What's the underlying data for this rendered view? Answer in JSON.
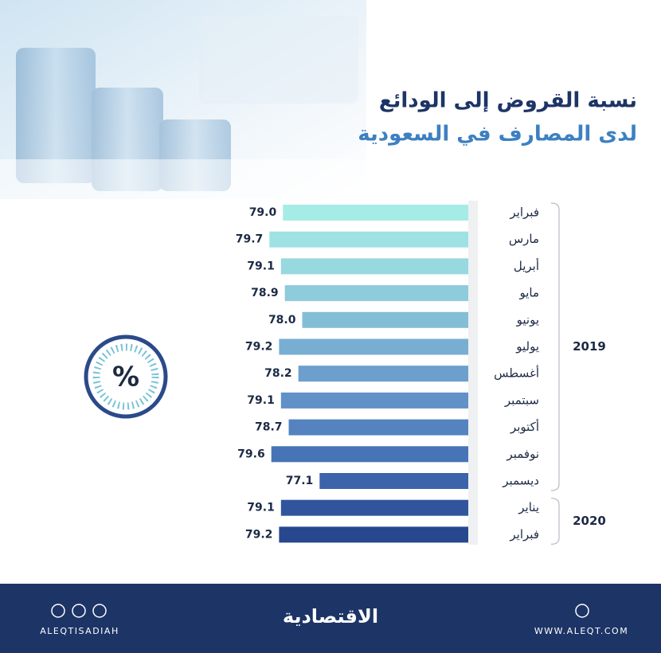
{
  "chart_data": {
    "type": "hbar",
    "title": "نسبة القروض إلى الودائع",
    "subtitle": "لدى المصارف في السعودية",
    "categories": [
      "فبراير",
      "مارس",
      "أبريل",
      "مايو",
      "يونيو",
      "يوليو",
      "أغسطس",
      "سبتمبر",
      "أكتوبر",
      "نوفمبر",
      "ديسمبر",
      "يناير",
      "فبراير"
    ],
    "values": [
      79.0,
      79.7,
      79.1,
      78.9,
      78.0,
      79.2,
      78.2,
      79.1,
      78.7,
      79.6,
      77.1,
      79.1,
      79.2
    ],
    "value_labels": [
      "79.0",
      "79.7",
      "79.1",
      "78.9",
      "78.0",
      "79.2",
      "78.2",
      "79.1",
      "78.7",
      "79.6",
      "77.1",
      "79.1",
      "79.2"
    ],
    "colors": [
      "#a6ece6",
      "#9fe2e3",
      "#98d8df",
      "#8ecbdb",
      "#84bdd6",
      "#78aed2",
      "#6c9fcd",
      "#6091c7",
      "#5483c0",
      "#4774b6",
      "#3b64aa",
      "#30559c",
      "#27488f"
    ],
    "xlim": [
      69.4,
      80
    ],
    "group_labels": [
      "2019",
      "2020"
    ],
    "symbol": "%",
    "footer": {
      "handle": "ALEQTISADIAH",
      "brand": "الاقتصادية",
      "website": "WWW.ALEQT.COM"
    }
  }
}
